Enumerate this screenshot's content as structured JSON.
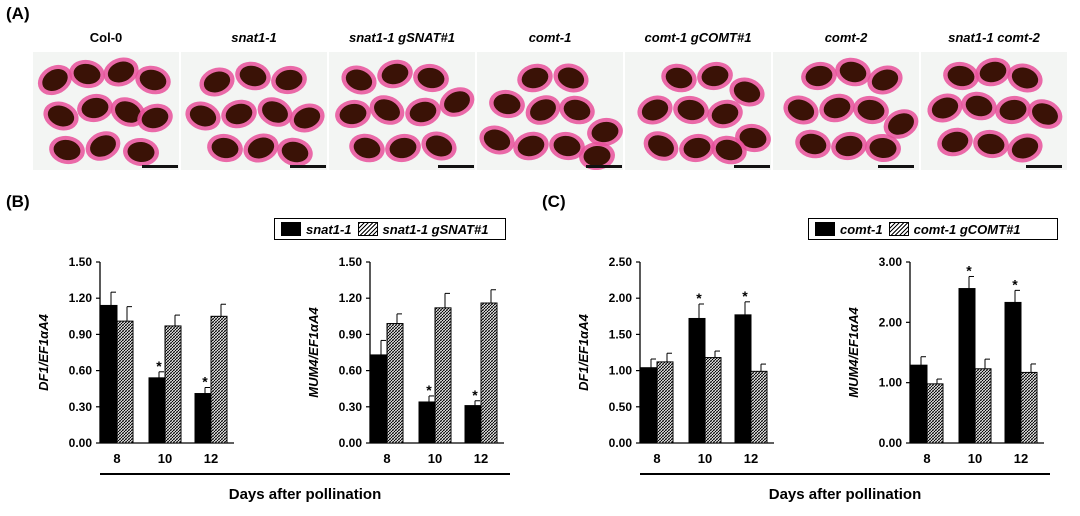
{
  "panels": {
    "a_label": "(A)",
    "b_label": "(B)",
    "c_label": "(C)"
  },
  "seed_images": [
    {
      "label": "Col-0",
      "italic": false
    },
    {
      "label": "snat1-1",
      "italic": true
    },
    {
      "label": "snat1-1 gSNAT#1",
      "italic": true
    },
    {
      "label": "comt-1",
      "italic": true
    },
    {
      "label": "comt-1 gCOMT#1",
      "italic": true
    },
    {
      "label": "comt-2",
      "italic": true
    },
    {
      "label": "snat1-1 comt-2",
      "italic": true
    }
  ],
  "legends": {
    "b": [
      "snat1-1",
      "snat1-1 gSNAT#1"
    ],
    "c": [
      "comt-1",
      "comt-1 gCOMT#1"
    ]
  },
  "group_xlabels": {
    "b": "Days after pollination",
    "c": "Days after pollination"
  },
  "colors": {
    "solid_bar": "#000000",
    "seed_coat": "#e8509a",
    "seed_body": "#3a1206"
  },
  "chart_data": [
    {
      "type": "bar",
      "panel": "B",
      "ylabel": "DF1/EF1αA4",
      "categories": [
        "8",
        "10",
        "12"
      ],
      "ylim": [
        0,
        1.5
      ],
      "yticks": [
        "0.00",
        "0.30",
        "0.60",
        "0.90",
        "1.20",
        "1.50"
      ],
      "series": [
        {
          "name": "snat1-1",
          "values": [
            1.14,
            0.54,
            0.41
          ],
          "errors": [
            0.11,
            0.05,
            0.05
          ],
          "significant": [
            false,
            true,
            true
          ]
        },
        {
          "name": "snat1-1 gSNAT#1",
          "values": [
            1.01,
            0.97,
            1.05
          ],
          "errors": [
            0.12,
            0.09,
            0.1
          ],
          "significant": [
            false,
            false,
            false
          ]
        }
      ]
    },
    {
      "type": "bar",
      "panel": "B",
      "ylabel": "MUM4/EF1αA4",
      "categories": [
        "8",
        "10",
        "12"
      ],
      "ylim": [
        0,
        1.5
      ],
      "yticks": [
        "0.00",
        "0.30",
        "0.60",
        "0.90",
        "1.20",
        "1.50"
      ],
      "series": [
        {
          "name": "snat1-1",
          "values": [
            0.73,
            0.34,
            0.31
          ],
          "errors": [
            0.12,
            0.05,
            0.04
          ],
          "significant": [
            false,
            true,
            true
          ]
        },
        {
          "name": "snat1-1 gSNAT#1",
          "values": [
            0.99,
            1.12,
            1.16
          ],
          "errors": [
            0.08,
            0.12,
            0.11
          ],
          "significant": [
            false,
            false,
            false
          ]
        }
      ]
    },
    {
      "type": "bar",
      "panel": "C",
      "ylabel": "DF1/EF1αA4",
      "categories": [
        "8",
        "10",
        "12"
      ],
      "ylim": [
        0,
        2.5
      ],
      "yticks": [
        "0.00",
        "0.50",
        "1.00",
        "1.50",
        "2.00",
        "2.50"
      ],
      "series": [
        {
          "name": "comt-1",
          "values": [
            1.04,
            1.72,
            1.77
          ],
          "errors": [
            0.12,
            0.2,
            0.18
          ],
          "significant": [
            false,
            true,
            true
          ]
        },
        {
          "name": "comt-1 gCOMT#1",
          "values": [
            1.12,
            1.18,
            0.99
          ],
          "errors": [
            0.12,
            0.09,
            0.1
          ],
          "significant": [
            false,
            false,
            false
          ]
        }
      ]
    },
    {
      "type": "bar",
      "panel": "C",
      "ylabel": "MUM4/EF1αA4",
      "categories": [
        "8",
        "10",
        "12"
      ],
      "ylim": [
        0,
        3.0
      ],
      "yticks": [
        "0.00",
        "1.00",
        "2.00",
        "3.00"
      ],
      "series": [
        {
          "name": "comt-1",
          "values": [
            1.29,
            2.56,
            2.33
          ],
          "errors": [
            0.14,
            0.2,
            0.2
          ],
          "significant": [
            false,
            true,
            true
          ]
        },
        {
          "name": "comt-1 gCOMT#1",
          "values": [
            0.98,
            1.23,
            1.17
          ],
          "errors": [
            0.08,
            0.16,
            0.14
          ],
          "significant": [
            false,
            false,
            false
          ]
        }
      ]
    }
  ]
}
